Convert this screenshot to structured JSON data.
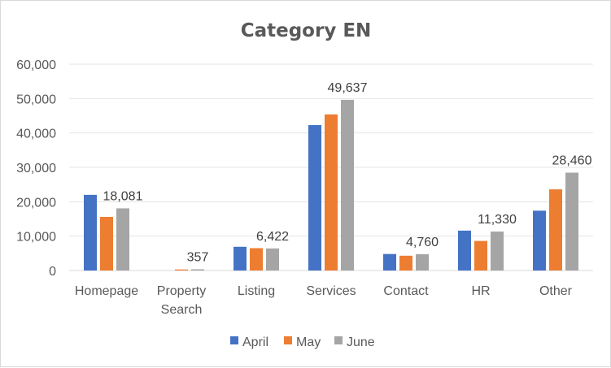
{
  "chart_data": {
    "type": "bar",
    "title": "Category EN",
    "categories": [
      "Homepage",
      "Property Search",
      "Listing",
      "Services",
      "Contact",
      "HR",
      "Other"
    ],
    "category_lines": [
      [
        "Homepage"
      ],
      [
        "Property",
        "Search"
      ],
      [
        "Listing"
      ],
      [
        "Services"
      ],
      [
        "Contact"
      ],
      [
        "HR"
      ],
      [
        "Other"
      ]
    ],
    "series": [
      {
        "name": "April",
        "color": "#4472C4",
        "values": [
          22000,
          0,
          6900,
          42300,
          4800,
          11600,
          17400
        ]
      },
      {
        "name": "May",
        "color": "#ED7D31",
        "values": [
          15600,
          300,
          6500,
          45400,
          4300,
          8600,
          23600
        ]
      },
      {
        "name": "June",
        "color": "#A5A5A5",
        "values": [
          18081,
          357,
          6422,
          49637,
          4760,
          11330,
          28460
        ]
      }
    ],
    "data_labels": {
      "series": "June",
      "texts": [
        "18,081",
        "357",
        "6,422",
        "49,637",
        "4,760",
        "11,330",
        "28,460"
      ]
    },
    "ylim": [
      0,
      60000
    ],
    "yticks": [
      0,
      10000,
      20000,
      30000,
      40000,
      50000,
      60000
    ],
    "ytick_labels": [
      "0",
      "10,000",
      "20,000",
      "30,000",
      "40,000",
      "50,000",
      "60,000"
    ],
    "xlabel": "",
    "ylabel": "",
    "grid": true,
    "legend_position": "bottom"
  }
}
